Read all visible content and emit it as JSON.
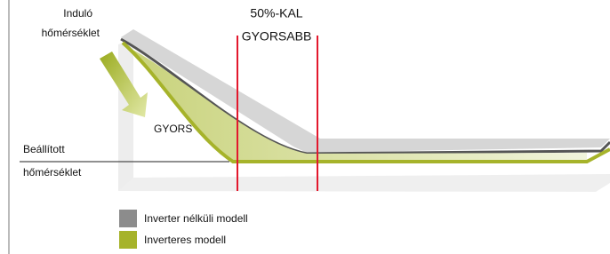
{
  "start_label": [
    "Induló",
    "hőmérséklet"
  ],
  "faster_label": [
    "50%-KAL",
    "GYORSABB"
  ],
  "fast_label": "GYORS",
  "set_label": [
    "Beállított",
    "hőmérséklet"
  ],
  "legend": [
    {
      "label": "Inverter nélküli modell",
      "color": "#8c8c8c"
    },
    {
      "label": "Inverteres modell",
      "color": "#a6b32a"
    }
  ]
}
